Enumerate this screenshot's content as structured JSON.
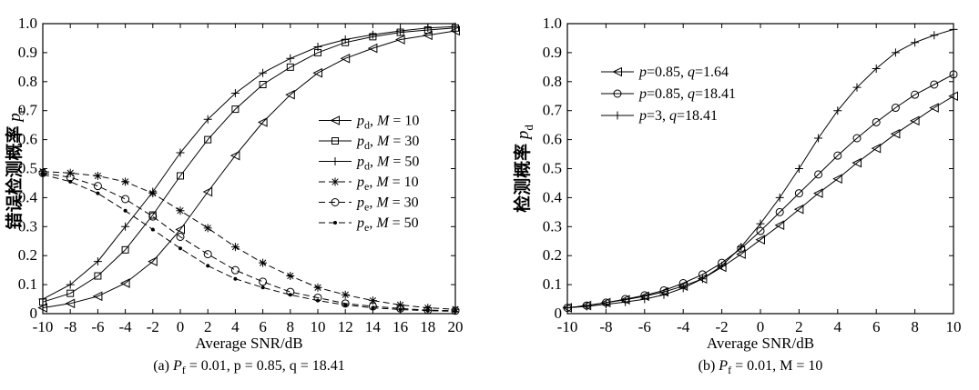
{
  "chart_data": [
    {
      "type": "line",
      "panel": "a",
      "caption": {
        "prefix": "(a) ",
        "pf": "P",
        "pf_sub": "f",
        "text": " = 0.01, p = 0.85, q = 18.41"
      },
      "xlabel": "Average SNR/dB",
      "ylabel": {
        "main": "错误检测概率",
        "sym": "p",
        "sub": "e"
      },
      "xlim": [
        -10,
        20
      ],
      "ylim": [
        0,
        1
      ],
      "xticks": [
        -10,
        -8,
        -6,
        -4,
        -2,
        0,
        2,
        4,
        6,
        8,
        10,
        12,
        14,
        16,
        18,
        20
      ],
      "yticks": [
        0,
        0.1,
        0.2,
        0.3,
        0.4,
        0.5,
        0.6,
        0.7,
        0.8,
        0.9,
        1.0
      ],
      "grid": false,
      "legend_position": "right-middle",
      "series": [
        {
          "sym": "p",
          "sub": "d",
          "label_rest": ", M = 10",
          "marker": "triangle-left",
          "dash": "solid",
          "x": [
            -10,
            -8,
            -6,
            -4,
            -2,
            0,
            2,
            4,
            6,
            8,
            10,
            12,
            14,
            16,
            18,
            20
          ],
          "y": [
            0.02,
            0.035,
            0.06,
            0.105,
            0.18,
            0.29,
            0.42,
            0.545,
            0.66,
            0.755,
            0.83,
            0.88,
            0.915,
            0.945,
            0.96,
            0.975
          ]
        },
        {
          "sym": "p",
          "sub": "d",
          "label_rest": ", M = 30",
          "marker": "square",
          "dash": "solid",
          "x": [
            -10,
            -8,
            -6,
            -4,
            -2,
            0,
            2,
            4,
            6,
            8,
            10,
            12,
            14,
            16,
            18,
            20
          ],
          "y": [
            0.04,
            0.07,
            0.13,
            0.22,
            0.34,
            0.475,
            0.6,
            0.705,
            0.79,
            0.85,
            0.9,
            0.935,
            0.955,
            0.97,
            0.978,
            0.985
          ]
        },
        {
          "sym": "p",
          "sub": "d",
          "label_rest": ", M = 50",
          "marker": "plus",
          "dash": "solid",
          "x": [
            -10,
            -8,
            -6,
            -4,
            -2,
            0,
            2,
            4,
            6,
            8,
            10,
            12,
            14,
            16,
            18,
            20
          ],
          "y": [
            0.05,
            0.1,
            0.18,
            0.3,
            0.42,
            0.555,
            0.67,
            0.76,
            0.83,
            0.88,
            0.92,
            0.945,
            0.962,
            0.975,
            0.985,
            0.99
          ]
        },
        {
          "sym": "p",
          "sub": "e",
          "label_rest": ", M = 10",
          "marker": "star",
          "dash": "dashed",
          "x": [
            -10,
            -8,
            -6,
            -4,
            -2,
            0,
            2,
            4,
            6,
            8,
            10,
            12,
            14,
            16,
            18,
            20
          ],
          "y": [
            0.49,
            0.485,
            0.475,
            0.455,
            0.415,
            0.355,
            0.295,
            0.23,
            0.175,
            0.13,
            0.09,
            0.065,
            0.045,
            0.03,
            0.02,
            0.015
          ]
        },
        {
          "sym": "p",
          "sub": "e",
          "label_rest": ", M = 30",
          "marker": "circle",
          "dash": "dashed",
          "x": [
            -10,
            -8,
            -6,
            -4,
            -2,
            0,
            2,
            4,
            6,
            8,
            10,
            12,
            14,
            16,
            18,
            20
          ],
          "y": [
            0.485,
            0.47,
            0.44,
            0.395,
            0.335,
            0.265,
            0.205,
            0.15,
            0.11,
            0.075,
            0.055,
            0.035,
            0.025,
            0.018,
            0.012,
            0.01
          ]
        },
        {
          "sym": "p",
          "sub": "e",
          "label_rest": ", M = 50",
          "marker": "dot",
          "dash": "dashed",
          "x": [
            -10,
            -8,
            -6,
            -4,
            -2,
            0,
            2,
            4,
            6,
            8,
            10,
            12,
            14,
            16,
            18,
            20
          ],
          "y": [
            0.48,
            0.455,
            0.415,
            0.355,
            0.29,
            0.225,
            0.165,
            0.12,
            0.09,
            0.065,
            0.045,
            0.03,
            0.02,
            0.014,
            0.01,
            0.008
          ]
        }
      ]
    },
    {
      "type": "line",
      "panel": "b",
      "caption": {
        "prefix": "(b) ",
        "pf": "P",
        "pf_sub": "f",
        "text": " = 0.01, M = 10"
      },
      "xlabel": "Average SNR/dB",
      "ylabel": {
        "main": "检测概率",
        "sym": "p",
        "sub": "d"
      },
      "xlim": [
        -10,
        10
      ],
      "ylim": [
        0,
        1
      ],
      "xticks": [
        -10,
        -8,
        -6,
        -4,
        -2,
        0,
        2,
        4,
        6,
        8,
        10
      ],
      "yticks": [
        0,
        0.1,
        0.2,
        0.3,
        0.4,
        0.5,
        0.6,
        0.7,
        0.8,
        0.9,
        1.0
      ],
      "grid": false,
      "legend_position": "top-left",
      "series": [
        {
          "label_html": "p=0.85, q=1.64",
          "marker": "triangle-left",
          "dash": "solid",
          "x": [
            -10,
            -9,
            -8,
            -7,
            -6,
            -5,
            -4,
            -3,
            -2,
            -1,
            0,
            1,
            2,
            3,
            4,
            5,
            6,
            7,
            8,
            9,
            10
          ],
          "y": [
            0.02,
            0.028,
            0.038,
            0.048,
            0.06,
            0.075,
            0.095,
            0.12,
            0.16,
            0.205,
            0.255,
            0.305,
            0.36,
            0.415,
            0.465,
            0.52,
            0.57,
            0.62,
            0.665,
            0.71,
            0.75
          ]
        },
        {
          "label_html": "p=0.85, q=18.41",
          "marker": "circle",
          "dash": "solid",
          "x": [
            -10,
            -9,
            -8,
            -7,
            -6,
            -5,
            -4,
            -3,
            -2,
            -1,
            0,
            1,
            2,
            3,
            4,
            5,
            6,
            7,
            8,
            9,
            10
          ],
          "y": [
            0.02,
            0.028,
            0.038,
            0.05,
            0.063,
            0.08,
            0.105,
            0.135,
            0.175,
            0.225,
            0.285,
            0.35,
            0.415,
            0.48,
            0.545,
            0.605,
            0.66,
            0.71,
            0.755,
            0.79,
            0.825
          ]
        },
        {
          "label_html": "p=3, q=18.41",
          "marker": "plus",
          "dash": "solid",
          "x": [
            -10,
            -9,
            -8,
            -7,
            -6,
            -5,
            -4,
            -3,
            -2,
            -1,
            0,
            1,
            2,
            3,
            4,
            5,
            6,
            7,
            8,
            9,
            10
          ],
          "y": [
            0.02,
            0.025,
            0.032,
            0.04,
            0.05,
            0.065,
            0.088,
            0.12,
            0.165,
            0.23,
            0.31,
            0.4,
            0.5,
            0.605,
            0.7,
            0.78,
            0.845,
            0.9,
            0.935,
            0.96,
            0.98
          ]
        }
      ]
    }
  ]
}
